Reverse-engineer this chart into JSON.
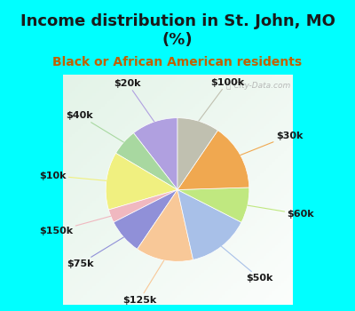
{
  "title": "Income distribution in St. John, MO\n(%)",
  "subtitle": "Black or African American residents",
  "background_color": "#00FFFF",
  "chart_bg_color": "#e8f5ee",
  "watermark": "ⓘ City-Data.com",
  "slices": [
    {
      "label": "$20k",
      "value": 10.5,
      "color": "#b0a0e0"
    },
    {
      "label": "$40k",
      "value": 6.0,
      "color": "#a8d8a0"
    },
    {
      "label": "$10k",
      "value": 13.0,
      "color": "#f0f080"
    },
    {
      "label": "$150k",
      "value": 3.0,
      "color": "#f0b8c0"
    },
    {
      "label": "$75k",
      "value": 8.0,
      "color": "#9090d8"
    },
    {
      "label": "$125k",
      "value": 13.0,
      "color": "#f8c898"
    },
    {
      "label": "$50k",
      "value": 14.0,
      "color": "#a8c0e8"
    },
    {
      "label": "$60k",
      "value": 8.0,
      "color": "#c0e880"
    },
    {
      "label": "$30k",
      "value": 15.0,
      "color": "#f0a850"
    },
    {
      "label": "$100k",
      "value": 9.5,
      "color": "#c0c0b0"
    }
  ],
  "label_fontsize": 8,
  "title_fontsize": 13,
  "subtitle_fontsize": 10,
  "title_color": "#1a1a1a",
  "subtitle_color": "#c06000"
}
